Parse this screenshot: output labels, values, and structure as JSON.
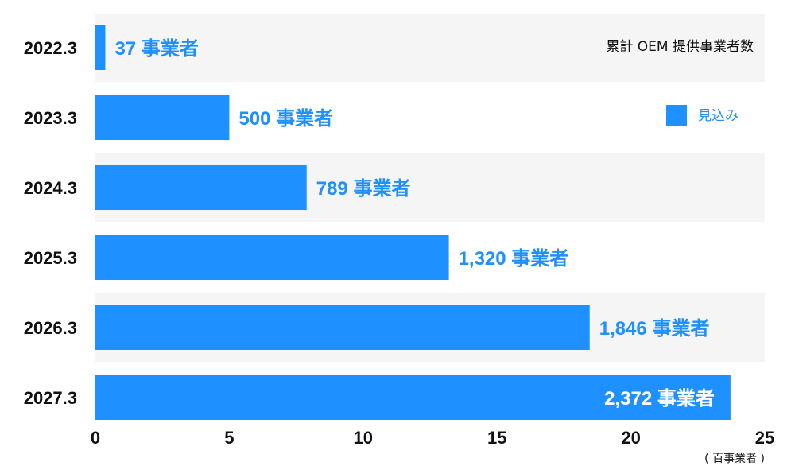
{
  "chart_data": {
    "type": "bar",
    "orientation": "horizontal",
    "title": "累計 OEM 提供事業者数",
    "categories": [
      "2022.3",
      "2023.3",
      "2024.3",
      "2025.3",
      "2026.3",
      "2027.3"
    ],
    "values": [
      0.37,
      5.0,
      7.89,
      13.2,
      18.46,
      23.72
    ],
    "data_labels": [
      "37 事業者",
      "500 事業者",
      "789 事業者",
      "1,320 事業者",
      "1,846 事業者",
      "2,372 事業者"
    ],
    "x_ticks": [
      "0",
      "5",
      "10",
      "15",
      "20",
      "25"
    ],
    "xlim": [
      0,
      25
    ],
    "unit_label": "( 百事業者 )",
    "legend": [
      {
        "name": "見込み",
        "color": "#1e90ff"
      }
    ],
    "legend_position": "right",
    "bar_color": "#1e90ff",
    "band_color": "#f5f5f5",
    "label_color": "#1e90ff",
    "label_inside_color": "#ffffff"
  }
}
